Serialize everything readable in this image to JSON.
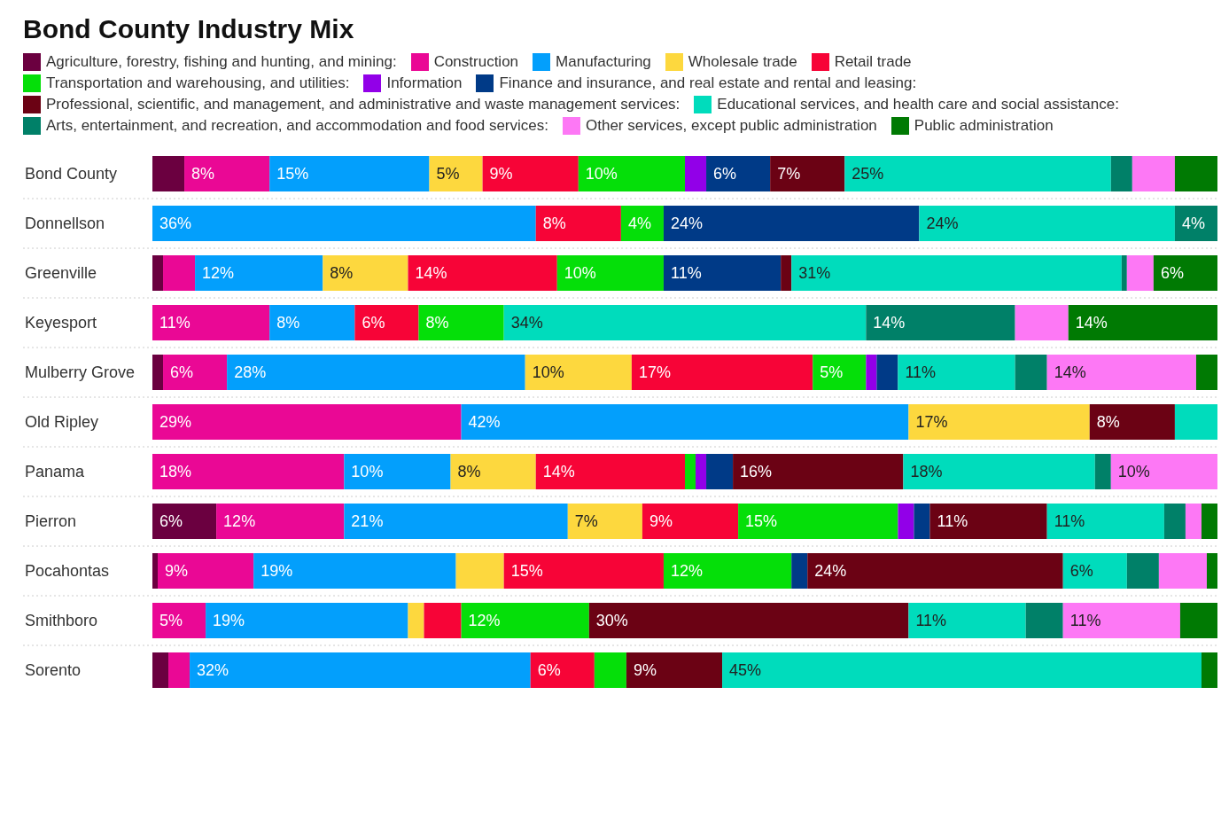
{
  "chart_data": {
    "type": "bar",
    "orientation": "horizontal",
    "stacked": true,
    "title": "Bond County Industry Mix",
    "legend": "top",
    "xlim": [
      0,
      100
    ],
    "tick_labels": "y",
    "categories": [
      "Bond County",
      "Donnellson",
      "Greenville",
      "Keyesport",
      "Mulberry Grove",
      "Old Ripley",
      "Panama",
      "Pierron",
      "Pocahontas",
      "Smithboro",
      "Sorento"
    ],
    "series": [
      {
        "name": "Agriculture, forestry, fishing and hunting, and mining:",
        "color": "#6b0040",
        "values": [
          3,
          0,
          1,
          0,
          1,
          0,
          0,
          6,
          0.5,
          0,
          1.5
        ],
        "value_labels": [
          null,
          null,
          null,
          null,
          null,
          null,
          null,
          "6%",
          null,
          null,
          null
        ]
      },
      {
        "name": "Construction",
        "color": "#ea0895",
        "values": [
          8,
          0,
          3,
          11,
          6,
          29,
          18,
          12,
          9,
          5,
          2
        ],
        "value_labels": [
          "8%",
          null,
          null,
          "11%",
          "6%",
          "29%",
          "18%",
          "12%",
          "9%",
          "5%",
          null
        ]
      },
      {
        "name": "Manufacturing",
        "color": "#039ffc",
        "values": [
          15,
          36,
          12,
          8,
          28,
          42,
          10,
          21,
          19,
          19,
          32
        ],
        "value_labels": [
          "15%",
          "36%",
          "12%",
          "8%",
          "28%",
          "42%",
          "10%",
          "21%",
          "19%",
          "19%",
          "32%"
        ]
      },
      {
        "name": "Wholesale trade",
        "color": "#fdd83e",
        "values": [
          5,
          0,
          8,
          0,
          10,
          17,
          8,
          7,
          4.5,
          1.5,
          0
        ],
        "value_labels": [
          "5%",
          null,
          "8%",
          null,
          "10%",
          "17%",
          "8%",
          "7%",
          null,
          null,
          null
        ]
      },
      {
        "name": "Retail trade",
        "color": "#f70437",
        "values": [
          9,
          8,
          14,
          6,
          17,
          0,
          14,
          9,
          15,
          3.5,
          6
        ],
        "value_labels": [
          "9%",
          "8%",
          "14%",
          "6%",
          "17%",
          null,
          "14%",
          "9%",
          "15%",
          null,
          "6%"
        ]
      },
      {
        "name": "Transportation and warehousing, and utilities:",
        "color": "#05df09",
        "values": [
          10,
          4,
          10,
          8,
          5,
          0,
          1,
          15,
          12,
          12,
          3
        ],
        "value_labels": [
          "10%",
          "4%",
          "10%",
          "8%",
          "5%",
          null,
          null,
          "15%",
          "12%",
          "12%",
          null
        ]
      },
      {
        "name": "Information",
        "color": "#9200e8",
        "values": [
          2,
          0,
          0,
          0,
          1,
          0,
          1,
          1.5,
          0,
          0,
          0
        ],
        "value_labels": [
          null,
          null,
          null,
          null,
          null,
          null,
          null,
          null,
          null,
          null,
          null
        ]
      },
      {
        "name": "Finance and insurance, and real estate and rental and leasing:",
        "color": "#003a87",
        "values": [
          6,
          24,
          11,
          0,
          2,
          0,
          2.5,
          1.5,
          1.5,
          0,
          0
        ],
        "value_labels": [
          "6%",
          "24%",
          "11%",
          null,
          null,
          null,
          null,
          null,
          null,
          null,
          null
        ]
      },
      {
        "name": "Professional, scientific, and management, and administrative and waste management services:",
        "color": "#6b0214",
        "values": [
          7,
          0,
          1,
          0,
          0,
          8,
          16,
          11,
          24,
          30,
          9
        ],
        "value_labels": [
          "7%",
          null,
          null,
          null,
          null,
          "8%",
          "16%",
          "11%",
          "24%",
          "30%",
          "9%"
        ]
      },
      {
        "name": "Educational services, and health care and social assistance:",
        "color": "#00dcbc",
        "values": [
          25,
          24,
          31,
          34,
          11,
          4,
          18,
          11,
          6,
          11,
          45
        ],
        "value_labels": [
          "25%",
          "24%",
          "31%",
          "34%",
          "11%",
          null,
          "18%",
          "11%",
          "6%",
          "11%",
          "45%"
        ]
      },
      {
        "name": "Arts, entertainment, and recreation, and accommodation and food services:",
        "color": "#008068",
        "values": [
          2,
          4,
          0.5,
          14,
          3,
          0,
          1.5,
          2,
          3,
          3.5,
          0
        ],
        "value_labels": [
          null,
          "4%",
          null,
          "14%",
          null,
          null,
          null,
          null,
          null,
          null,
          null
        ]
      },
      {
        "name": "Other services, except public administration",
        "color": "#fd78f5",
        "values": [
          4,
          0,
          2.5,
          5,
          14,
          0,
          10,
          1.5,
          4.5,
          11,
          0
        ],
        "value_labels": [
          null,
          null,
          null,
          null,
          "14%",
          null,
          "10%",
          null,
          null,
          "11%",
          null
        ]
      },
      {
        "name": "Public administration",
        "color": "#007a03",
        "values": [
          4,
          0,
          6,
          14,
          2,
          0,
          0,
          1.5,
          1,
          3.5,
          1.5
        ],
        "value_labels": [
          null,
          null,
          "6%",
          "14%",
          null,
          null,
          null,
          null,
          null,
          null,
          null
        ]
      }
    ]
  }
}
